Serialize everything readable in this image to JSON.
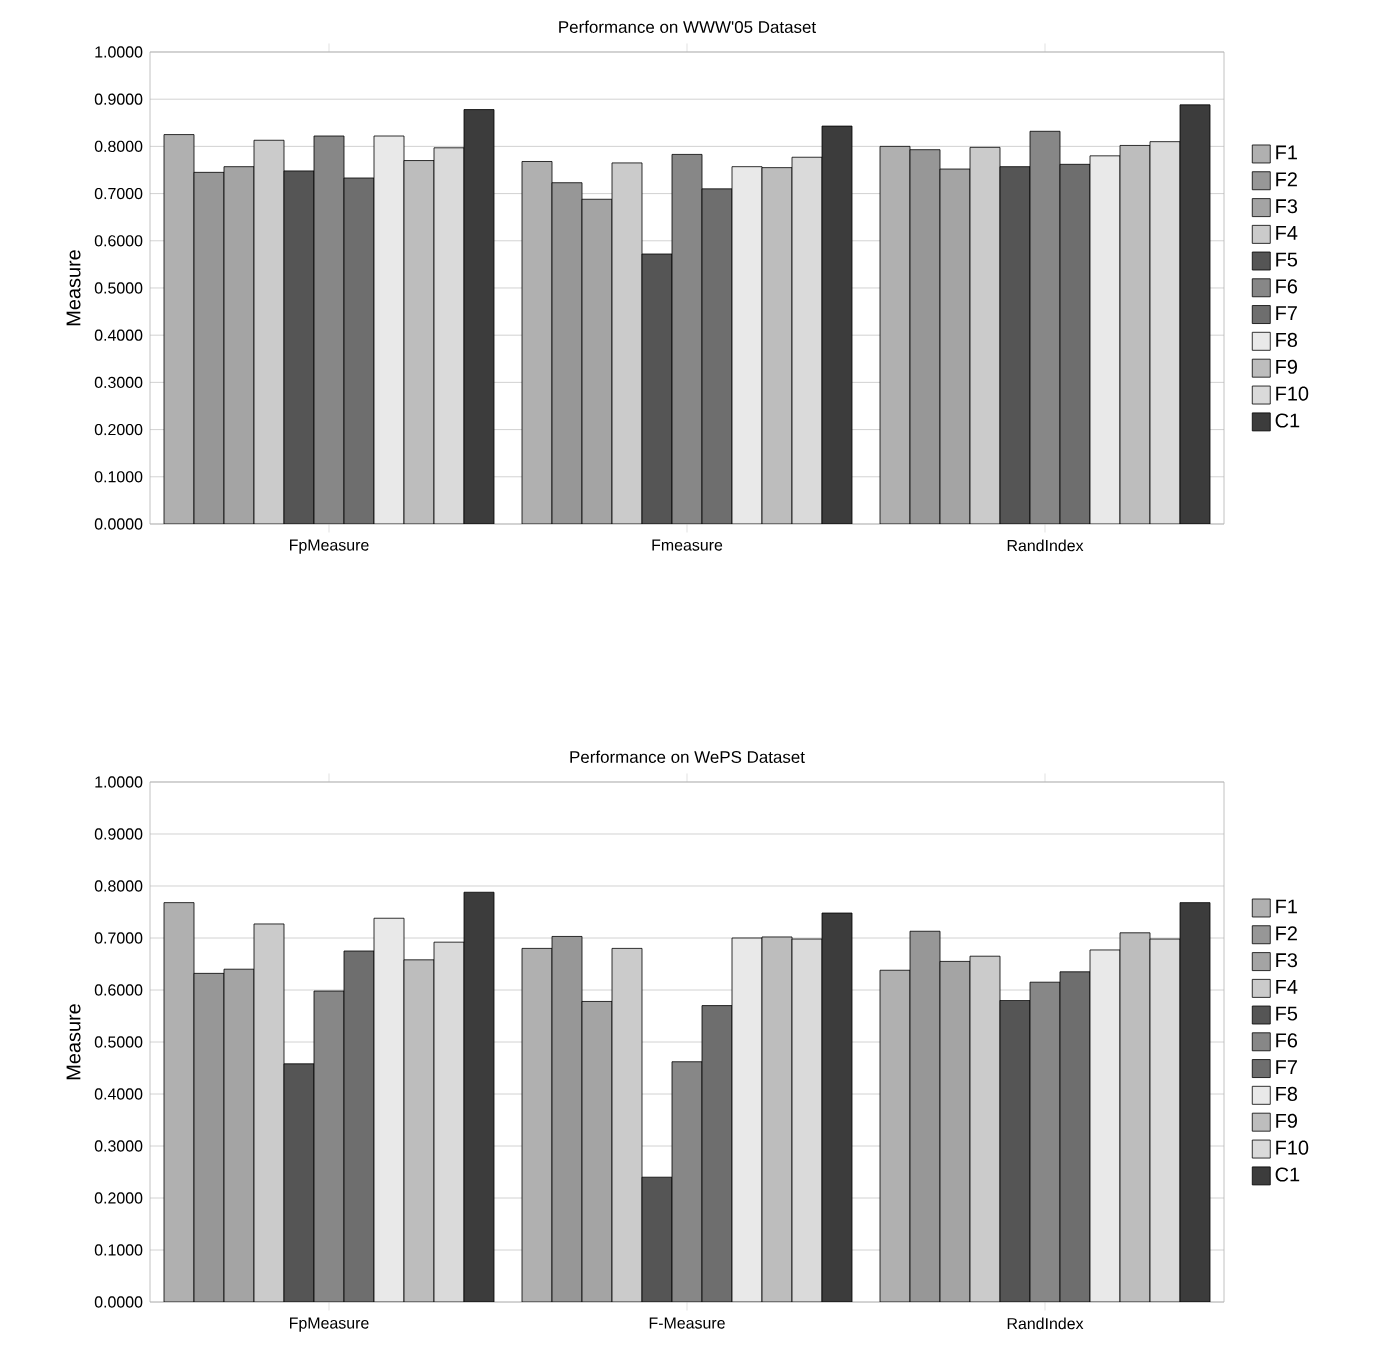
{
  "chart_data": [
    {
      "type": "bar",
      "title": "Performance on WWW'05 Dataset",
      "ylabel": "Measure",
      "categories": [
        "FpMeasure",
        "Fmeasure",
        "RandIndex"
      ],
      "ylim": [
        0,
        1
      ],
      "yticks": [
        {
          "value": 0,
          "label": "0.0000"
        },
        {
          "value": 0.1,
          "label": "0.1000"
        },
        {
          "value": 0.2,
          "label": "0.2000"
        },
        {
          "value": 0.3,
          "label": "0.3000"
        },
        {
          "value": 0.4,
          "label": "0.4000"
        },
        {
          "value": 0.5,
          "label": "0.5000"
        },
        {
          "value": 0.6,
          "label": "0.6000"
        },
        {
          "value": 0.7,
          "label": "0.7000"
        },
        {
          "value": 0.8,
          "label": "0.8000"
        },
        {
          "value": 0.9,
          "label": "0.9000"
        },
        {
          "value": 1,
          "label": "1.0000"
        }
      ],
      "grid": "y",
      "legend": "right",
      "series": [
        {
          "name": "F1",
          "color": "#b0b0b0",
          "values": [
            0.825,
            0.768,
            0.8
          ]
        },
        {
          "name": "F2",
          "color": "#979797",
          "values": [
            0.745,
            0.723,
            0.793
          ]
        },
        {
          "name": "F3",
          "color": "#a4a4a4",
          "values": [
            0.757,
            0.688,
            0.752
          ]
        },
        {
          "name": "F4",
          "color": "#cbcbcb",
          "values": [
            0.813,
            0.765,
            0.798
          ]
        },
        {
          "name": "F5",
          "color": "#555555",
          "values": [
            0.748,
            0.572,
            0.757
          ]
        },
        {
          "name": "F6",
          "color": "#878787",
          "values": [
            0.822,
            0.783,
            0.832
          ]
        },
        {
          "name": "F7",
          "color": "#6e6e6e",
          "values": [
            0.733,
            0.71,
            0.762
          ]
        },
        {
          "name": "F8",
          "color": "#e9e9e9",
          "values": [
            0.822,
            0.757,
            0.78
          ]
        },
        {
          "name": "F9",
          "color": "#bdbdbd",
          "values": [
            0.77,
            0.755,
            0.802
          ]
        },
        {
          "name": "F10",
          "color": "#dadada",
          "values": [
            0.797,
            0.777,
            0.81
          ]
        },
        {
          "name": "C1",
          "color": "#3c3c3c",
          "values": [
            0.878,
            0.843,
            0.888
          ]
        }
      ]
    },
    {
      "type": "bar",
      "title": "Performance on WePS Dataset",
      "ylabel": "Measure",
      "categories": [
        "FpMeasure",
        "F-Measure",
        "RandIndex"
      ],
      "ylim": [
        0,
        1
      ],
      "yticks": [
        {
          "value": 0,
          "label": "0.0000"
        },
        {
          "value": 0.1,
          "label": "0.1000"
        },
        {
          "value": 0.2,
          "label": "0.2000"
        },
        {
          "value": 0.3,
          "label": "0.3000"
        },
        {
          "value": 0.4,
          "label": "0.4000"
        },
        {
          "value": 0.5,
          "label": "0.5000"
        },
        {
          "value": 0.6,
          "label": "0.6000"
        },
        {
          "value": 0.7,
          "label": "0.7000"
        },
        {
          "value": 0.8,
          "label": "0.8000"
        },
        {
          "value": 0.9,
          "label": "0.9000"
        },
        {
          "value": 1,
          "label": "1.0000"
        }
      ],
      "grid": "y",
      "legend": "right",
      "series": [
        {
          "name": "F1",
          "color": "#b0b0b0",
          "values": [
            0.768,
            0.68,
            0.638
          ]
        },
        {
          "name": "F2",
          "color": "#979797",
          "values": [
            0.632,
            0.703,
            0.713
          ]
        },
        {
          "name": "F3",
          "color": "#a4a4a4",
          "values": [
            0.64,
            0.578,
            0.655
          ]
        },
        {
          "name": "F4",
          "color": "#cbcbcb",
          "values": [
            0.727,
            0.68,
            0.665
          ]
        },
        {
          "name": "F5",
          "color": "#555555",
          "values": [
            0.458,
            0.24,
            0.58
          ]
        },
        {
          "name": "F6",
          "color": "#878787",
          "values": [
            0.598,
            0.462,
            0.615
          ]
        },
        {
          "name": "F7",
          "color": "#6e6e6e",
          "values": [
            0.675,
            0.57,
            0.635
          ]
        },
        {
          "name": "F8",
          "color": "#e9e9e9",
          "values": [
            0.738,
            0.7,
            0.677
          ]
        },
        {
          "name": "F9",
          "color": "#bdbdbd",
          "values": [
            0.658,
            0.702,
            0.71
          ]
        },
        {
          "name": "F10",
          "color": "#dadada",
          "values": [
            0.692,
            0.698,
            0.698
          ]
        },
        {
          "name": "C1",
          "color": "#3c3c3c",
          "values": [
            0.788,
            0.748,
            0.768
          ]
        }
      ]
    }
  ]
}
